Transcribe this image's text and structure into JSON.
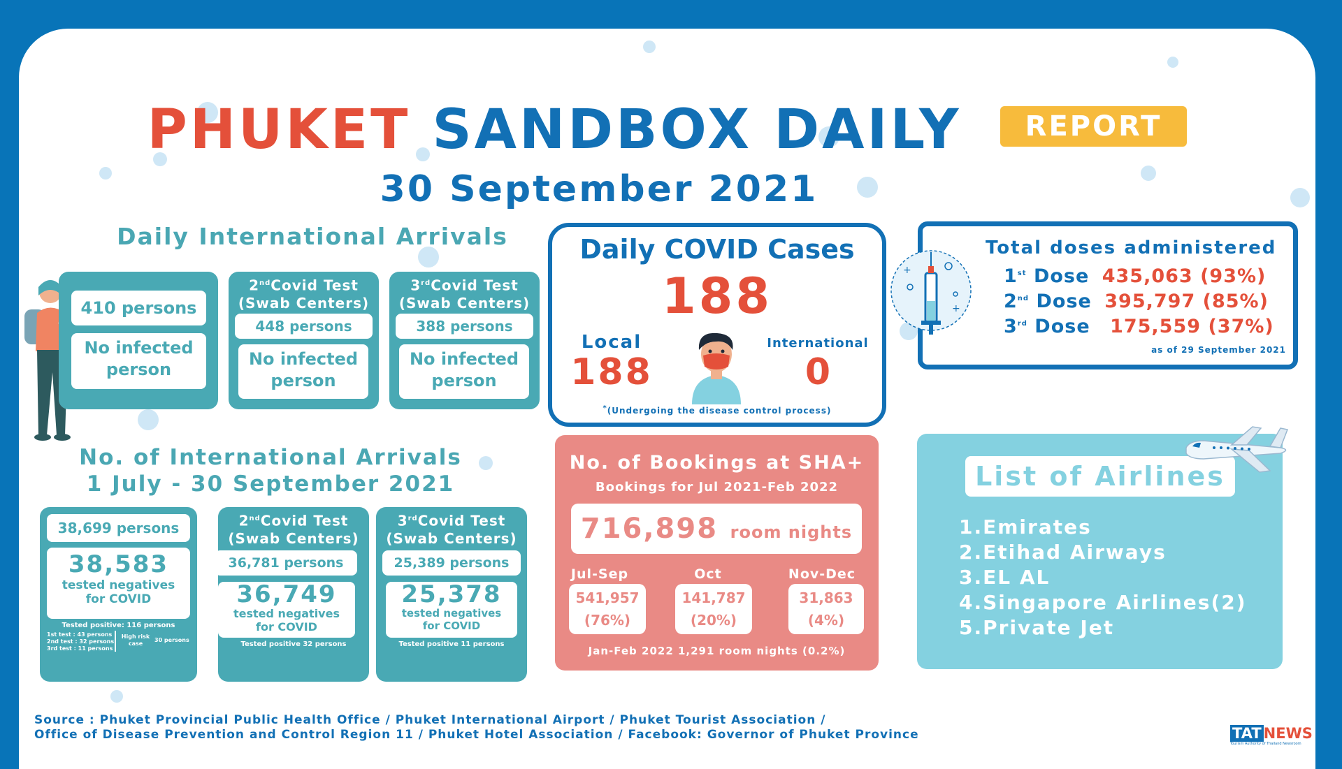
{
  "title": {
    "part1": "PHUKET",
    "part2": "SANDBOX DAILY",
    "badge": "REPORT"
  },
  "date": "30 September 2021",
  "daily_arrivals": {
    "title": "Daily International Arrivals",
    "box1": {
      "count": "410 persons",
      "status": "No infected person"
    },
    "box2": {
      "num": "2",
      "sup": "nd",
      "head_line1": "Covid Test",
      "head_line2": "(Swab Centers)",
      "count": "448 persons",
      "status": "No infected person"
    },
    "box3": {
      "num": "3",
      "sup": "rd",
      "head_line1": "Covid Test",
      "head_line2": "(Swab Centers)",
      "count": "388 persons",
      "status": "No infected person"
    }
  },
  "cumulative_arrivals": {
    "title_line1": "No. of International Arrivals",
    "title_line2": "1 July - 30 September 2021",
    "box1": {
      "count": "38,699 persons",
      "negatives": "38,583",
      "negatives_label1": "tested negatives",
      "negatives_label2": "for COVID",
      "positive": "Tested positive: 116 persons",
      "detail1": "1st test :   43 persons",
      "detail2": "2nd test : 32 persons",
      "detail3": "3rd test :  11 persons",
      "high_risk1": "High risk",
      "high_risk2": "case",
      "high_risk_count": "30 persons"
    },
    "box2": {
      "num": "2",
      "sup": "nd",
      "head_line1": "Covid Test",
      "head_line2": "(Swab Centers)",
      "count": "36,781 persons",
      "negatives": "36,749",
      "negatives_label1": "tested negatives",
      "negatives_label2": "for COVID",
      "positive": "Tested positive 32 persons"
    },
    "box3": {
      "num": "3",
      "sup": "rd",
      "head_line1": "Covid Test",
      "head_line2": "(Swab Centers)",
      "count": "25,389 persons",
      "negatives": "25,378",
      "negatives_label1": "tested negatives",
      "negatives_label2": "for COVID",
      "positive": "Tested positive 11 persons"
    }
  },
  "covid": {
    "title": "Daily COVID Cases",
    "total": "188",
    "local_label": "Local",
    "local": "188",
    "intl_label": "International",
    "intl": "0",
    "footnote_mark": "*",
    "footnote": "(Undergoing the disease control process)"
  },
  "vaccination": {
    "title": "Total doses administered",
    "doses": [
      {
        "num": "1",
        "sup": "st",
        "label": "Dose",
        "value": "435,063 (93%)"
      },
      {
        "num": "2",
        "sup": "nd",
        "label": "Dose",
        "value": "395,797 (85%)"
      },
      {
        "num": "3",
        "sup": "rd",
        "label": "Dose",
        "value": "175,559 (37%)"
      }
    ],
    "asof": "as of 29 September 2021"
  },
  "bookings": {
    "title": "No. of Bookings at SHA+",
    "subtitle": "Bookings for Jul 2021-Feb 2022",
    "total": "716,898",
    "unit": "room nights",
    "periods": [
      {
        "label": "Jul-Sep",
        "value": "541,957",
        "pct": "(76%)"
      },
      {
        "label": "Oct",
        "value": "141,787",
        "pct": "(20%)"
      },
      {
        "label": "Nov-Dec",
        "value": "31,863",
        "pct": "(4%)"
      }
    ],
    "footer": "Jan-Feb 2022 1,291 room nights (0.2%)"
  },
  "airlines": {
    "title": "List of Airlines",
    "items": [
      "1.Emirates",
      "2.Etihad Airways",
      "3.EL AL",
      "4.Singapore Airlines(2)",
      "5.Private Jet"
    ]
  },
  "source": {
    "line1": "Source : Phuket Provincial Public Health Office / Phuket International Airport / Phuket Tourist Association /",
    "line2": "Office of Disease Prevention and Control Region 11 / Phuket Hotel Association / Facebook: Governor of Phuket Province"
  },
  "logo": {
    "part1": "TAT",
    "part2": "NEWS",
    "tag": "Tourism Authority of Thailand Newsroom"
  }
}
